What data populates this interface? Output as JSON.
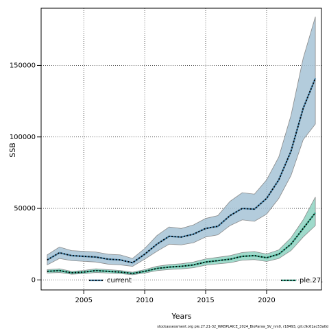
{
  "chart_data": {
    "type": "area",
    "xlabel": "Years",
    "ylabel": "SSB",
    "xlim": [
      2001.5,
      2024.5
    ],
    "ylim": [
      -7000,
      190000
    ],
    "xticks": [
      2005,
      2010,
      2015,
      2020
    ],
    "yticks": [
      0,
      50000,
      100000,
      150000
    ],
    "grid": true,
    "legend_placement": "bottom",
    "x": [
      2002,
      2003,
      2004,
      2005,
      2006,
      2007,
      2008,
      2009,
      2010,
      2011,
      2012,
      2013,
      2014,
      2015,
      2016,
      2017,
      2018,
      2019,
      2020,
      2021,
      2022,
      2023,
      2024
    ],
    "series": [
      {
        "name": "current",
        "color": "#4a86ad",
        "fill": "#a6c3d6",
        "values": [
          14000,
          19000,
          17000,
          16500,
          16000,
          14500,
          14000,
          12000,
          18000,
          25000,
          30500,
          30000,
          32000,
          36000,
          37500,
          45000,
          50000,
          49500,
          57000,
          70000,
          90000,
          120000,
          141000
        ],
        "lower": [
          10500,
          15000,
          13500,
          13000,
          12500,
          11000,
          10500,
          9500,
          14500,
          20000,
          25000,
          24500,
          26000,
          30000,
          31500,
          38000,
          42000,
          41000,
          46000,
          57000,
          73000,
          98000,
          109000
        ],
        "upper": [
          17500,
          23000,
          20500,
          20000,
          19500,
          18000,
          17500,
          15000,
          22000,
          31000,
          37000,
          36000,
          38500,
          43000,
          45000,
          55000,
          61000,
          60000,
          70000,
          86000,
          115000,
          155000,
          184000
        ]
      },
      {
        "name": "ple.27.",
        "color": "#3aa88c",
        "fill": "#8ed4c2",
        "values": [
          6000,
          6500,
          5000,
          5500,
          6500,
          6000,
          5500,
          4500,
          6000,
          8000,
          9000,
          9500,
          10500,
          12500,
          13500,
          14500,
          16500,
          17000,
          15500,
          18000,
          25000,
          36000,
          47000
        ],
        "lower": [
          4800,
          5200,
          4000,
          4400,
          5200,
          4800,
          4400,
          3600,
          4800,
          6500,
          7300,
          7700,
          8500,
          10300,
          11200,
          12000,
          13800,
          14200,
          12900,
          15000,
          20500,
          30000,
          38000
        ],
        "upper": [
          7200,
          7800,
          6000,
          6600,
          7800,
          7200,
          6600,
          5400,
          7200,
          9500,
          10700,
          11300,
          12500,
          14700,
          15800,
          17000,
          19200,
          19800,
          18100,
          21000,
          29500,
          42000,
          58000
        ]
      }
    ],
    "footnote": "stockassessment.org ple.27.21-32_WKBPLAICE_2024_BioParsw_SV_nm0, r18493, git:c9c61ac53a0d"
  }
}
